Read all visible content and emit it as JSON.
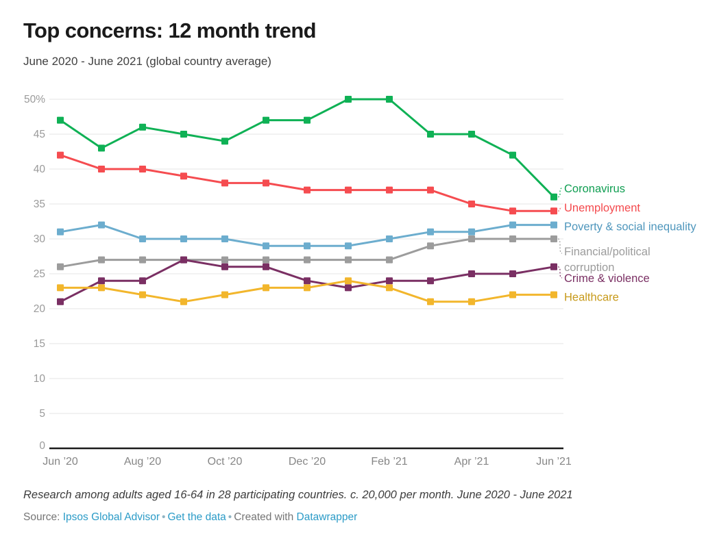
{
  "header": {
    "title": "Top concerns: 12 month trend",
    "subtitle": "June 2020 - June 2021 (global country average)"
  },
  "chart_data": {
    "type": "line",
    "x": [
      "Jun ’20",
      "Jul ’20",
      "Aug ’20",
      "Sep ’20",
      "Oct ’20",
      "Nov ’20",
      "Dec ’20",
      "Jan ’21",
      "Feb ’21",
      "Mar ’21",
      "Apr ’21",
      "May ’21",
      "Jun ’21"
    ],
    "x_tick_labels": [
      "Jun ’20",
      "Aug ’20",
      "Oct ’20",
      "Dec ’20",
      "Feb ’21",
      "Apr ’21",
      "Jun ’21"
    ],
    "x_tick_indices": [
      0,
      2,
      4,
      6,
      8,
      10,
      12
    ],
    "y_ticks": [
      0,
      5,
      10,
      15,
      20,
      25,
      30,
      35,
      40,
      45,
      50
    ],
    "y_tick_labels": [
      "0",
      "5",
      "10",
      "15",
      "20",
      "25",
      "30",
      "35",
      "40",
      "45",
      "50%"
    ],
    "ylim": [
      0,
      50
    ],
    "grid": "horizontal",
    "legend_position": "right-of-line-ends",
    "marker": "square",
    "series": [
      {
        "name": "Coronavirus",
        "label_lines": [
          "Coronavirus"
        ],
        "color": "#0fb155",
        "label_color": "#109e52",
        "values": [
          47,
          43,
          46,
          45,
          44,
          47,
          47,
          50,
          50,
          45,
          45,
          42,
          36
        ]
      },
      {
        "name": "Unemployment",
        "label_lines": [
          "Unemployment"
        ],
        "color": "#f54c50",
        "label_color": "#f4494d",
        "values": [
          42,
          40,
          40,
          39,
          38,
          38,
          37,
          37,
          37,
          37,
          35,
          34,
          34
        ]
      },
      {
        "name": "Poverty & social inequality",
        "label_lines": [
          "Poverty & social inequality"
        ],
        "color": "#6cadce",
        "label_color": "#4e96bc",
        "values": [
          31,
          32,
          30,
          30,
          30,
          29,
          29,
          29,
          30,
          31,
          31,
          32,
          32
        ]
      },
      {
        "name": "Financial/political corruption",
        "label_lines": [
          "Financial/political",
          "corruption"
        ],
        "color": "#9c9c9c",
        "label_color": "#9c9c9c",
        "values": [
          26,
          27,
          27,
          27,
          27,
          27,
          27,
          27,
          27,
          29,
          30,
          30,
          30
        ]
      },
      {
        "name": "Crime & violence",
        "label_lines": [
          "Crime & violence"
        ],
        "color": "#7a2f63",
        "label_color": "#7a2f63",
        "values": [
          21,
          24,
          24,
          27,
          26,
          26,
          24,
          23,
          24,
          24,
          25,
          25,
          26
        ]
      },
      {
        "name": "Healthcare",
        "label_lines": [
          "Healthcare"
        ],
        "color": "#f2b62c",
        "label_color": "#c79a1b",
        "values": [
          23,
          23,
          22,
          21,
          22,
          23,
          23,
          24,
          23,
          21,
          21,
          22,
          22
        ]
      }
    ],
    "colors": {
      "gridline": "#e4e4e4",
      "baseline": "#1b1b1b",
      "axis_label": "#9a9a9a",
      "x_axis_label": "#868686"
    }
  },
  "footer": {
    "note": "Research among adults aged 16-64 in 28 participating countries. c. 20,000 per month. June 2020 - June 2021",
    "source_prefix": "Source:",
    "source_link": "Ipsos Global Advisor",
    "separator": "•",
    "get_data_link": "Get the data",
    "created_with": "Created with",
    "datawrapper_link": "Datawrapper"
  }
}
